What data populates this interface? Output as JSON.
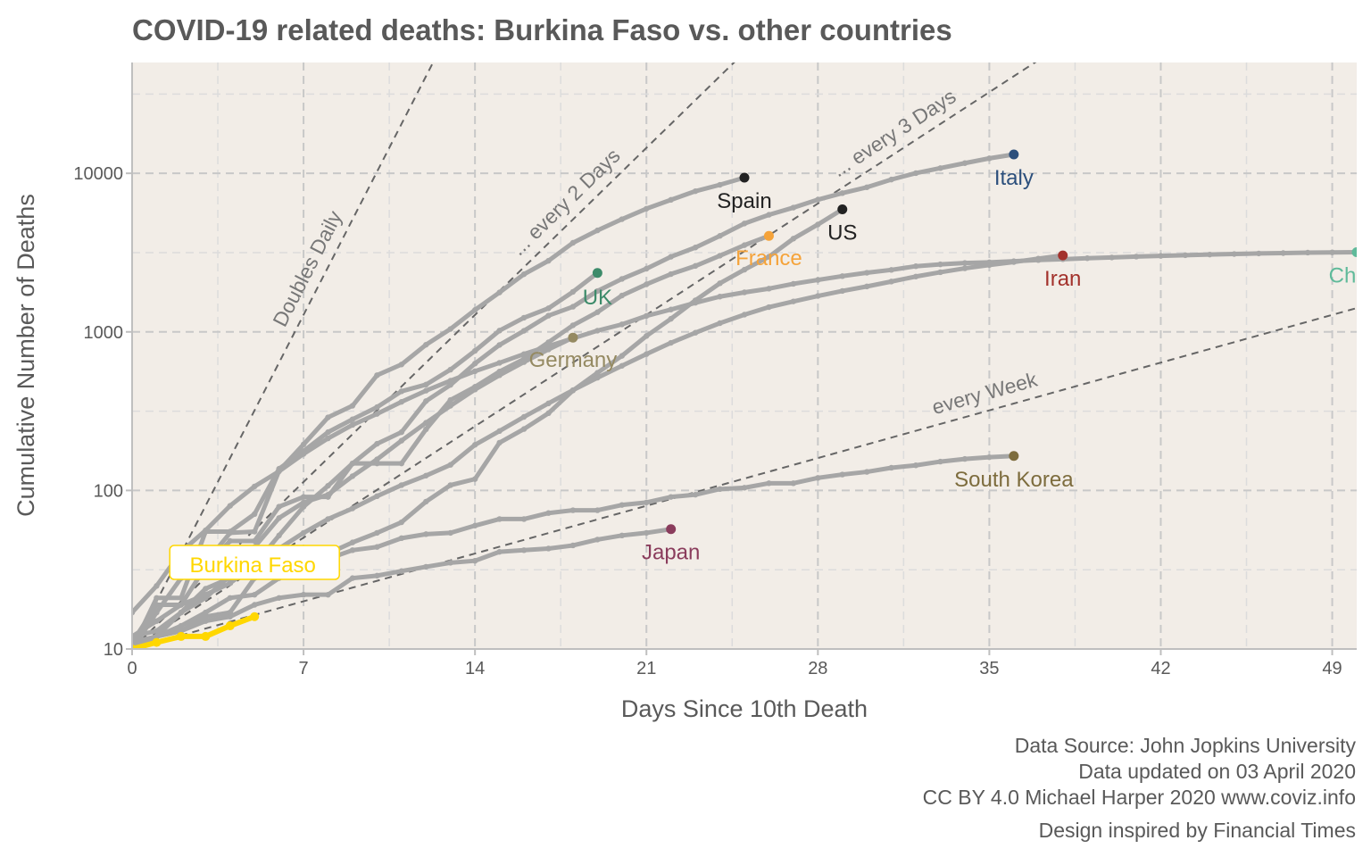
{
  "chart_data": {
    "type": "line",
    "title": "COVID-19 related deaths: Burkina Faso vs. other countries",
    "xlabel": "Days Since 10th Death",
    "ylabel": "Cumulative Number of Deaths",
    "y_scale": "log10",
    "xlim": [
      0,
      50
    ],
    "ylim": [
      10,
      50000
    ],
    "x_ticks": [
      0,
      7,
      14,
      21,
      28,
      35,
      42,
      49
    ],
    "y_ticks": [
      10,
      100,
      1000,
      10000
    ],
    "grid": true,
    "colors": {
      "panel": "#f2ede7",
      "grid": "#cccccc",
      "other_lines": "#a6a6a6",
      "guide_lines": "#666666",
      "highlight": "#ffd700"
    },
    "guides": [
      {
        "label": "Doubles Daily",
        "doubling_days": 1
      },
      {
        "label": "... every 2 Days",
        "doubling_days": 2
      },
      {
        "label": "... every 3 Days",
        "doubling_days": 3
      },
      {
        "label": "every  Week",
        "doubling_days": 7
      }
    ],
    "highlight": {
      "name": "Burkina Faso",
      "label": "Burkina Faso",
      "color": "#ffd700",
      "x": [
        0,
        1,
        2,
        3,
        4,
        5
      ],
      "y": [
        10,
        11,
        12,
        12,
        14,
        16
      ]
    },
    "series": [
      {
        "name": "Italy",
        "label": "Italy",
        "color": "#2c4f7c",
        "x": [
          0,
          1,
          2,
          3,
          4,
          5,
          6,
          7,
          8,
          9,
          10,
          11,
          12,
          13,
          14,
          15,
          16,
          17,
          18,
          19,
          20,
          21,
          22,
          23,
          24,
          25,
          26,
          27,
          28,
          29,
          30,
          31,
          32,
          33,
          34,
          35,
          36
        ],
        "y": [
          10,
          12,
          17,
          21,
          29,
          34,
          52,
          79,
          107,
          148,
          197,
          233,
          366,
          463,
          631,
          827,
          1016,
          1266,
          1441,
          1809,
          2158,
          2503,
          2978,
          3405,
          4032,
          4825,
          5476,
          6077,
          6820,
          7503,
          8165,
          9134,
          10023,
          10779,
          11591,
          12428,
          13155
        ]
      },
      {
        "name": "Spain",
        "label": "Spain",
        "color": "#222222",
        "x": [
          0,
          1,
          2,
          3,
          4,
          5,
          6,
          7,
          8,
          9,
          10,
          11,
          12,
          13,
          14,
          15,
          16,
          17,
          18,
          19,
          20,
          21,
          22,
          23,
          24,
          25
        ],
        "y": [
          10,
          17,
          28,
          35,
          54,
          55,
          133,
          195,
          289,
          342,
          533,
          623,
          830,
          1043,
          1375,
          1772,
          2311,
          2808,
          3647,
          4365,
          5138,
          5982,
          6803,
          7716,
          8464,
          9387
        ]
      },
      {
        "name": "US",
        "label": "US",
        "color": "#222222",
        "x": [
          0,
          1,
          2,
          3,
          4,
          5,
          6,
          7,
          8,
          9,
          10,
          11,
          12,
          13,
          14,
          15,
          16,
          17,
          18,
          19,
          20,
          21,
          22,
          23,
          24,
          25,
          26,
          27,
          28,
          29
        ],
        "y": [
          11,
          12,
          14,
          17,
          21,
          22,
          28,
          36,
          40,
          47,
          54,
          63,
          85,
          108,
          118,
          200,
          244,
          307,
          427,
          552,
          706,
          942,
          1209,
          1581,
          2026,
          2467,
          2978,
          3873,
          4757,
          5926
        ]
      },
      {
        "name": "France",
        "label": "France",
        "color": "#f5a33a",
        "x": [
          0,
          1,
          2,
          3,
          4,
          5,
          6,
          7,
          8,
          9,
          10,
          11,
          12,
          13,
          14,
          15,
          16,
          17,
          18,
          19,
          20,
          21,
          22,
          23,
          24,
          25,
          26
        ],
        "y": [
          11,
          19,
          19,
          33,
          48,
          48,
          79,
          91,
          91,
          148,
          148,
          148,
          243,
          372,
          450,
          562,
          674,
          860,
          1100,
          1331,
          1696,
          1995,
          2314,
          2606,
          3024,
          3523,
          4032
        ]
      },
      {
        "name": "UK",
        "label": "UK",
        "color": "#3d8b6a",
        "x": [
          0,
          1,
          2,
          3,
          4,
          5,
          6,
          7,
          8,
          9,
          10,
          11,
          12,
          13,
          14,
          15,
          16,
          17,
          18,
          19
        ],
        "y": [
          10,
          21,
          21,
          55,
          55,
          71,
          137,
          177,
          233,
          281,
          335,
          422,
          465,
          578,
          759,
          1019,
          1228,
          1408,
          1789,
          2352
        ]
      },
      {
        "name": "Germany",
        "label": "Germany",
        "color": "#958a62",
        "x": [
          0,
          1,
          2,
          3,
          4,
          5,
          6,
          7,
          8,
          9,
          10,
          11,
          12,
          13,
          14,
          15,
          16,
          17,
          18
        ],
        "y": [
          12,
          13,
          17,
          24,
          28,
          44,
          67,
          84,
          94,
          123,
          157,
          206,
          267,
          342,
          433,
          533,
          645,
          775,
          920
        ]
      },
      {
        "name": "Iran",
        "label": "Iran",
        "color": "#a3322c",
        "x": [
          0,
          1,
          2,
          3,
          4,
          5,
          6,
          7,
          8,
          9,
          10,
          11,
          12,
          13,
          14,
          15,
          16,
          17,
          18,
          19,
          20,
          21,
          22,
          23,
          24,
          25,
          26,
          27,
          28,
          29,
          30,
          31,
          32,
          33,
          34,
          35,
          36,
          37,
          38
        ],
        "y": [
          12,
          15,
          19,
          22,
          26,
          34,
          43,
          54,
          66,
          77,
          92,
          108,
          124,
          145,
          194,
          237,
          291,
          354,
          429,
          514,
          611,
          724,
          853,
          988,
          1135,
          1284,
          1433,
          1556,
          1685,
          1812,
          1934,
          2077,
          2234,
          2378,
          2517,
          2640,
          2757,
          2898,
          3036
        ]
      },
      {
        "name": "China",
        "label": "China",
        "color": "#5fba9a",
        "x": [
          0,
          1,
          2,
          3,
          4,
          5,
          6,
          7,
          8,
          9,
          10,
          11,
          12,
          13,
          14,
          15,
          16,
          17,
          18,
          19,
          20,
          21,
          22,
          23,
          24,
          25,
          26,
          27,
          28,
          29,
          30,
          31,
          32,
          33,
          34,
          35,
          36,
          37,
          38,
          39,
          40,
          41,
          42,
          43,
          44,
          45,
          46,
          47,
          48,
          49,
          50
        ],
        "y": [
          17,
          25,
          41,
          56,
          80,
          106,
          132,
          170,
          213,
          259,
          304,
          362,
          426,
          492,
          565,
          638,
          724,
          813,
          910,
          1018,
          1115,
          1261,
          1383,
          1526,
          1669,
          1775,
          1873,
          2009,
          2126,
          2247,
          2360,
          2460,
          2595,
          2666,
          2718,
          2747,
          2791,
          2838,
          2873,
          2915,
          2946,
          2984,
          3015,
          3045,
          3073,
          3099,
          3123,
          3140,
          3162,
          3173,
          3180
        ]
      },
      {
        "name": "South Korea",
        "label": "South Korea",
        "color": "#7d6c3d",
        "x": [
          0,
          1,
          2,
          3,
          4,
          5,
          6,
          7,
          8,
          9,
          10,
          11,
          12,
          13,
          14,
          15,
          16,
          17,
          18,
          19,
          20,
          21,
          22,
          23,
          24,
          25,
          26,
          27,
          28,
          29,
          30,
          31,
          32,
          33,
          34,
          35,
          36
        ],
        "y": [
          11,
          12,
          13,
          16,
          17,
          28,
          32,
          35,
          37,
          42,
          44,
          50,
          53,
          54,
          60,
          66,
          66,
          72,
          75,
          75,
          81,
          84,
          91,
          94,
          102,
          104,
          111,
          111,
          120,
          126,
          131,
          139,
          144,
          152,
          158,
          162,
          165
        ]
      },
      {
        "name": "Japan",
        "label": "Japan",
        "color": "#8a3c5c",
        "x": [
          0,
          1,
          2,
          3,
          4,
          5,
          6,
          7,
          8,
          9,
          10,
          11,
          12,
          13,
          14,
          15,
          16,
          17,
          18,
          19,
          20,
          21,
          22
        ],
        "y": [
          10,
          12,
          13,
          15,
          16,
          19,
          21,
          22,
          22,
          28,
          29,
          31,
          33,
          35,
          36,
          41,
          42,
          43,
          45,
          49,
          52,
          54,
          57
        ]
      }
    ],
    "caption": [
      "Data Source: John Jopkins University",
      "Data updated on 03 April 2020",
      "CC BY 4.0 Michael Harper 2020 www.coviz.info",
      "Design inspired by Financial Times"
    ]
  }
}
